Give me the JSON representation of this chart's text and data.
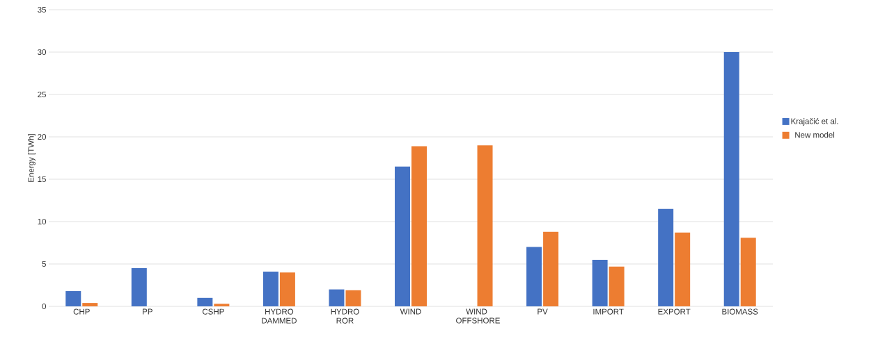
{
  "chart_data": {
    "type": "bar",
    "ylabel": "Energy [TWh]",
    "categories": [
      "CHP",
      "PP",
      "CSHP",
      "HYDRO DAMMED",
      "HYDRO ROR",
      "WIND",
      "WIND OFFSHORE",
      "PV",
      "IMPORT",
      "EXPORT",
      "BIOMASS"
    ],
    "series": [
      {
        "name": "Krajačić et al.",
        "color": "#4472c4",
        "values": [
          1.8,
          4.5,
          1.0,
          4.1,
          2.0,
          16.5,
          null,
          7.0,
          5.5,
          11.5,
          30
        ]
      },
      {
        "name": "New model",
        "color": "#ed7d31",
        "values": [
          0.4,
          null,
          0.3,
          4.0,
          1.9,
          18.9,
          19.0,
          8.8,
          4.7,
          8.7,
          8.1
        ]
      }
    ],
    "ylim": [
      0,
      35
    ],
    "yticks": [
      0,
      5,
      10,
      15,
      20,
      25,
      30,
      35
    ],
    "grid": "y",
    "legend": "right"
  }
}
